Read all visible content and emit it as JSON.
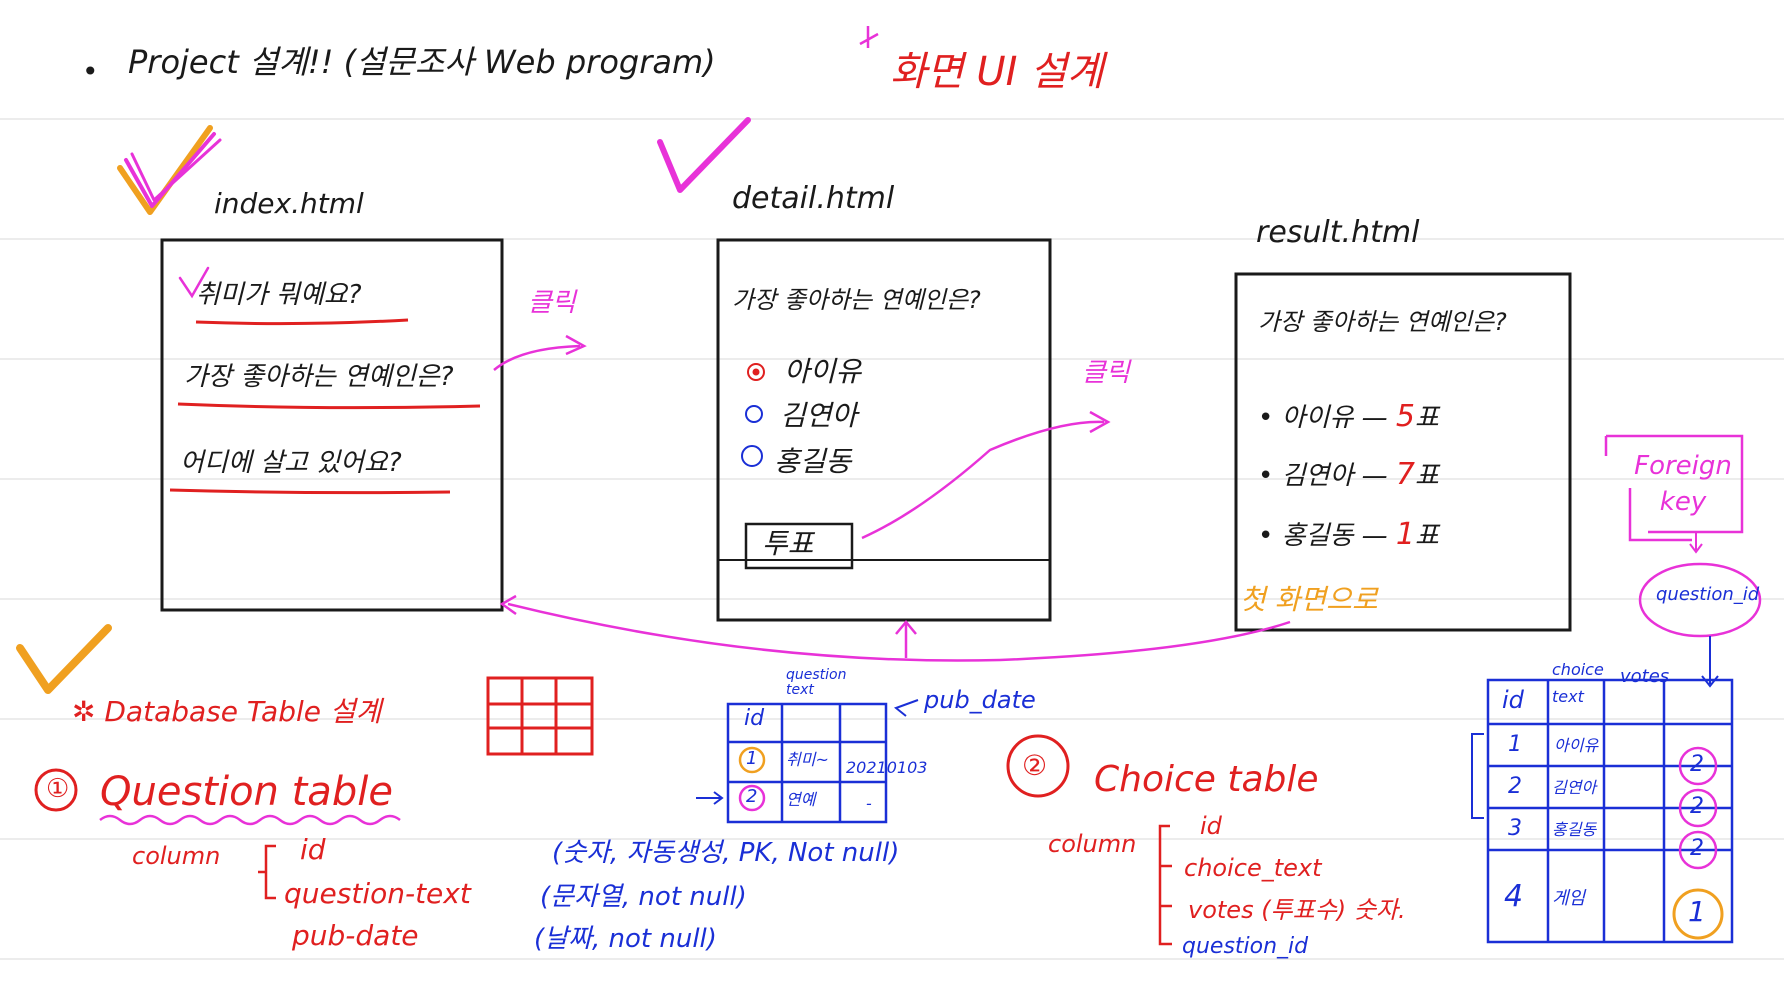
{
  "header": {
    "bullet": "•",
    "project_title": "Project 설계!! (설문조사 Web program)",
    "screen_ui_title": "화면 UI 설계"
  },
  "pages": {
    "index": {
      "filename": "index.html",
      "items": [
        "취미가 뭐예요?",
        "가장 좋아하는 연예인은?",
        "어디에 살고 있어요?"
      ],
      "click_label": "클릭"
    },
    "detail": {
      "filename": "detail.html",
      "question": "가장 좋아하는 연예인은?",
      "options": [
        "아이유",
        "김연아",
        "홍길동"
      ],
      "vote_button": "투표",
      "click_label": "클릭"
    },
    "result": {
      "filename": "result.html",
      "question": "가장 좋아하는 연예인은?",
      "results": [
        {
          "name": "아이유",
          "dash": "—",
          "count": "5",
          "unit": "표"
        },
        {
          "name": "김연아",
          "dash": "—",
          "count": "7",
          "unit": "표"
        },
        {
          "name": "홍길동",
          "dash": "—",
          "count": "1",
          "unit": "표"
        }
      ],
      "back_link": "첫 화면으로"
    }
  },
  "database": {
    "title": "Database Table 설계",
    "question_table": {
      "number": "①",
      "title": "Question table",
      "column_label": "column",
      "columns": [
        {
          "name": "id",
          "desc": "(숫자, 자동생성, PK, Not null)"
        },
        {
          "name": "question-text",
          "desc": "(문자열, not null)"
        },
        {
          "name": "pub-date",
          "desc": "(날짜, not null)"
        }
      ],
      "sketch": {
        "header_id": "id",
        "header_text": "question text",
        "header_date": "pub_date",
        "rows": [
          {
            "id": "1",
            "text": "취미~",
            "date": "20210103"
          },
          {
            "id": "2",
            "text": "연예",
            "date": "-"
          }
        ]
      }
    },
    "choice_table": {
      "number": "②",
      "title": "Choice table",
      "column_label": "column",
      "columns": [
        "id",
        "choice_text",
        "votes (투표수) 숫자.",
        "question_id"
      ],
      "foreign_key_label": "Foreign key",
      "fk_column": "question_id",
      "sketch": {
        "headers": [
          "id",
          "choice text",
          "votes",
          ""
        ],
        "rows": [
          {
            "id": "1",
            "text": "아이유",
            "qid": "2"
          },
          {
            "id": "2",
            "text": "김연아",
            "qid": "2"
          },
          {
            "id": "3",
            "text": "홍길동",
            "qid": "2"
          },
          {
            "id": "4",
            "text": "게임",
            "qid": "1"
          }
        ]
      }
    }
  },
  "colors": {
    "ink": "#1a1a1a",
    "red": "#e02020",
    "blue": "#1a2fd6",
    "magenta": "#e832d8",
    "orange": "#f0a020"
  }
}
